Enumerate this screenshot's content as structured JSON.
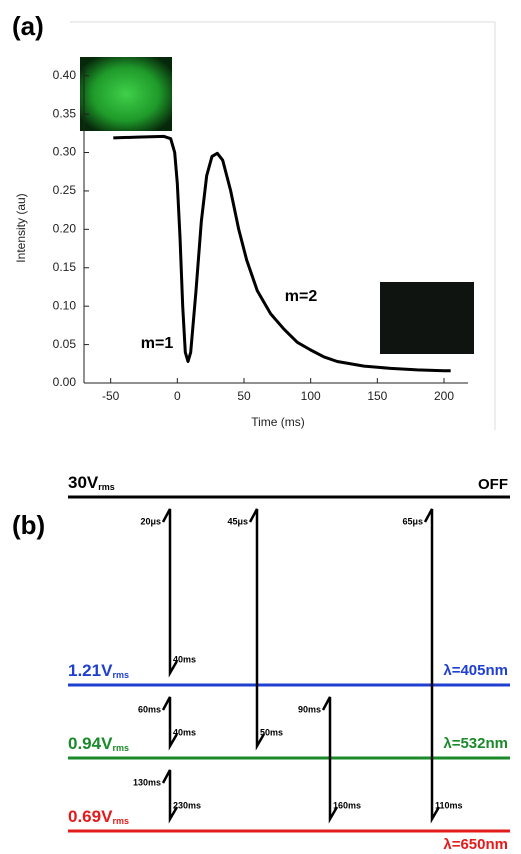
{
  "panel_labels": [
    "(a)",
    "(b)"
  ],
  "chart_data": {
    "type": "line",
    "xlabel": "Time (ms)",
    "ylabel": "Intensity (au)",
    "annotations": [
      "m=1",
      "m=2"
    ],
    "x": [
      -48,
      -30,
      -10,
      -5,
      -2,
      0,
      2,
      4,
      6,
      8,
      10,
      14,
      18,
      22,
      26,
      30,
      34,
      40,
      46,
      52,
      60,
      70,
      80,
      90,
      100,
      110,
      120,
      140,
      160,
      180,
      200,
      205
    ],
    "values": [
      0.319,
      0.32,
      0.321,
      0.318,
      0.3,
      0.26,
      0.19,
      0.1,
      0.04,
      0.028,
      0.04,
      0.12,
      0.21,
      0.27,
      0.295,
      0.299,
      0.29,
      0.25,
      0.2,
      0.16,
      0.12,
      0.09,
      0.07,
      0.053,
      0.043,
      0.034,
      0.028,
      0.022,
      0.019,
      0.017,
      0.016,
      0.016
    ],
    "color": "#000000",
    "xlim": [
      -70,
      215
    ],
    "xticks": [
      -50,
      0,
      50,
      100,
      150,
      200
    ],
    "ylim": [
      0,
      0.41
    ],
    "yticks": [
      {
        "value": 0,
        "label": "0.00"
      },
      {
        "value": 0.05,
        "label": "0.05"
      },
      {
        "value": 0.1,
        "label": "0.10"
      },
      {
        "value": 0.15,
        "label": "0.15"
      },
      {
        "value": 0.2,
        "label": "0.20"
      },
      {
        "value": 0.25,
        "label": "0.25"
      },
      {
        "value": 0.3,
        "label": "0.30"
      },
      {
        "value": 0.35,
        "label": "0.35"
      },
      {
        "value": 0.4,
        "label": "0.40"
      }
    ]
  },
  "diagram": {
    "levels": [
      {
        "voltage": "30V",
        "unit": "rms",
        "label": "OFF",
        "color": "#000000"
      },
      {
        "voltage": "1.21V",
        "unit": "rms",
        "label": "λ=405nm",
        "color": "#1f3fd0"
      },
      {
        "voltage": "0.94V",
        "unit": "rms",
        "label": "λ=532nm",
        "color": "#1a8a2a"
      },
      {
        "voltage": "0.69V",
        "unit": "rms",
        "label": "λ=650nm",
        "color": "#e31b1b"
      }
    ],
    "transitions": [
      {
        "start": "20μs",
        "end": "40ms"
      },
      {
        "start": "60ms",
        "end": "40ms"
      },
      {
        "start": "130ms",
        "end": "230ms"
      },
      {
        "start": "45μs",
        "end": "50ms"
      },
      {
        "start": "90ms",
        "end": "160ms"
      },
      {
        "start": "65μs",
        "end": "110ms"
      }
    ]
  }
}
